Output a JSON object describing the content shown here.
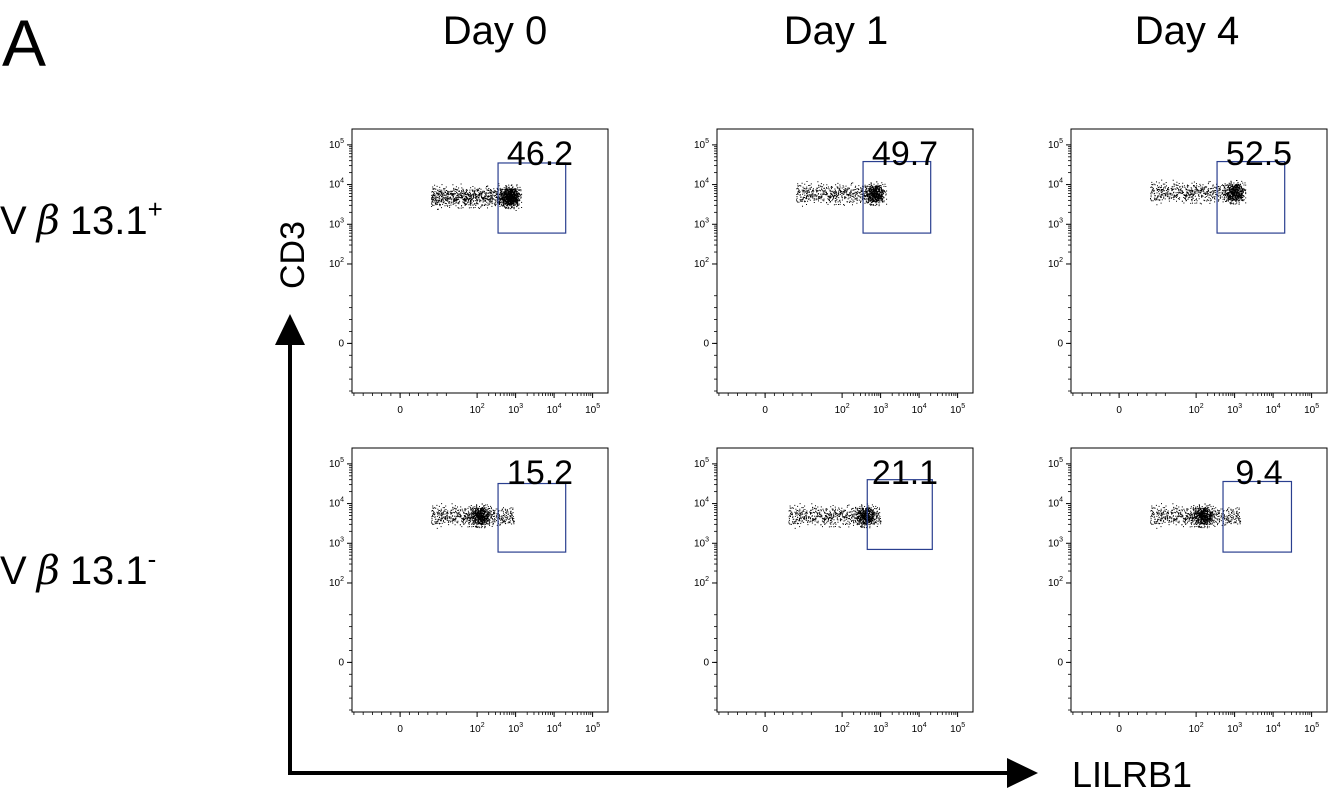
{
  "panel_label": "A",
  "columns": [
    "Day 0",
    "Day 1",
    "Day 4"
  ],
  "rows": [
    {
      "prefix": "V",
      "greek": "β",
      "label": "13.1",
      "superscript": "+"
    },
    {
      "prefix": "V",
      "greek": "β",
      "label": "13.1",
      "superscript": "-"
    }
  ],
  "y_axis_label": "CD3",
  "x_axis_label": "LILRB1",
  "chart_data": {
    "type": "scatter",
    "plot_kind": "flow-cytometry dot plot grid",
    "x_scale": "biexponential (log above 10^2)",
    "y_scale": "biexponential (log above 10^2)",
    "x_ticks": [
      {
        "label": "0",
        "exp": ""
      },
      {
        "label": "10",
        "exp": "2"
      },
      {
        "label": "10",
        "exp": "3"
      },
      {
        "label": "10",
        "exp": "4"
      },
      {
        "label": "10",
        "exp": "5"
      }
    ],
    "y_ticks": [
      {
        "label": "10",
        "exp": "5"
      },
      {
        "label": "10",
        "exp": "4"
      },
      {
        "label": "10",
        "exp": "3"
      },
      {
        "label": "10",
        "exp": "2"
      },
      {
        "label": "0",
        "exp": ""
      }
    ],
    "gate_color": "#2a3f8f",
    "dot_color": "#000000",
    "panels": [
      {
        "row": 0,
        "col": 0,
        "gate_percent": "46.2",
        "gate": {
          "x": [
            350,
            20000
          ],
          "y": [
            600,
            35000
          ]
        },
        "population": {
          "x": [
            40,
            1100
          ],
          "y_center": 5000,
          "dense_x": 700
        }
      },
      {
        "row": 0,
        "col": 1,
        "gate_percent": "49.7",
        "gate": {
          "x": [
            350,
            20000
          ],
          "y": [
            600,
            38000
          ]
        },
        "population": {
          "x": [
            40,
            1100
          ],
          "y_center": 6000,
          "dense_x": 700
        }
      },
      {
        "row": 0,
        "col": 2,
        "gate_percent": "52.5",
        "gate": {
          "x": [
            350,
            20000
          ],
          "y": [
            600,
            38000
          ]
        },
        "population": {
          "x": [
            40,
            1500
          ],
          "y_center": 6500,
          "dense_x": 1000
        }
      },
      {
        "row": 1,
        "col": 0,
        "gate_percent": "15.2",
        "gate": {
          "x": [
            350,
            20000
          ],
          "y": [
            600,
            32000
          ]
        },
        "population": {
          "x": [
            40,
            900
          ],
          "y_center": 5000,
          "dense_x": 120
        }
      },
      {
        "row": 1,
        "col": 1,
        "gate_percent": "21.1",
        "gate": {
          "x": [
            450,
            22000
          ],
          "y": [
            700,
            40000
          ]
        },
        "population": {
          "x": [
            30,
            1000
          ],
          "y_center": 5000,
          "dense_x": 400
        }
      },
      {
        "row": 1,
        "col": 2,
        "gate_percent": "9.4",
        "gate": {
          "x": [
            500,
            30000
          ],
          "y": [
            600,
            36000
          ]
        },
        "population": {
          "x": [
            40,
            1400
          ],
          "y_center": 5000,
          "dense_x": 150
        }
      }
    ]
  }
}
